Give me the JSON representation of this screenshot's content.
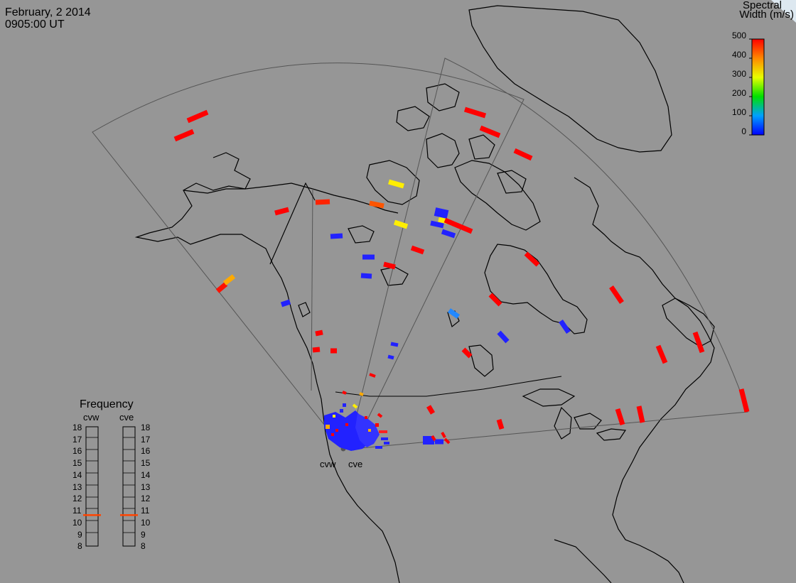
{
  "header": {
    "date": "February, 2 2014",
    "time": "0905:00 UT"
  },
  "colorbar": {
    "title_line1": "Spectral",
    "title_line2": "Width (m/s)",
    "ticks": [
      "500",
      "400",
      "300",
      "200",
      "100",
      "0"
    ]
  },
  "frequency_panel": {
    "title": "Frequency",
    "radars": [
      "cvw",
      "cve"
    ],
    "ticks": [
      "18",
      "17",
      "16",
      "15",
      "14",
      "13",
      "12",
      "11",
      "10",
      "9",
      "8"
    ],
    "cvw_frequency_mhz": 10.6,
    "cve_frequency_mhz": 10.6
  },
  "radar_labels": [
    "cvw",
    "cve"
  ],
  "colors": {
    "background": "#969696",
    "coast": "#000000",
    "fov": "#555555",
    "indicator": "#ff4400"
  }
}
